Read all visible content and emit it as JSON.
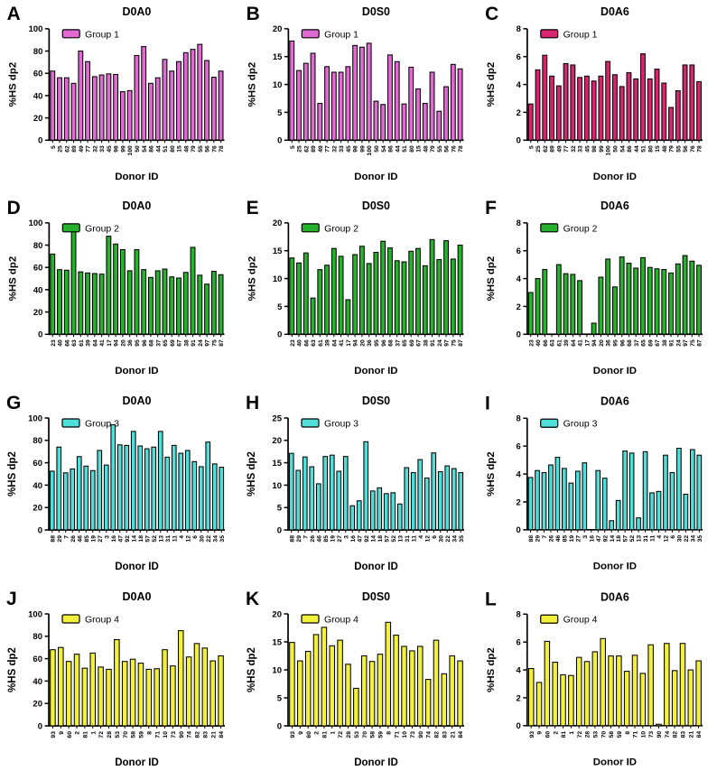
{
  "figure": {
    "background": "#ffffff",
    "axis_color": "#000000",
    "xlabel": "Donor ID",
    "ylabel": "%HS dp2"
  },
  "chart_data": [
    {
      "type": "bar",
      "panel": "A",
      "title": "D0A0",
      "legend": "Group 1",
      "bar_color": "#e06ad2",
      "xlabel": "Donor ID",
      "ylabel": "%HS dp2",
      "ylim": [
        0,
        100
      ],
      "ytick_step": 20,
      "grid": false,
      "legend_position": "top-left",
      "categories": [
        "5",
        "25",
        "62",
        "89",
        "49",
        "77",
        "32",
        "33",
        "45",
        "98",
        "99",
        "100",
        "50",
        "54",
        "86",
        "44",
        "51",
        "80",
        "15",
        "48",
        "79",
        "55",
        "56",
        "76",
        "78"
      ],
      "values": [
        62,
        56,
        56,
        51,
        80,
        70.5,
        57,
        58.5,
        59.5,
        59,
        43.5,
        44.5,
        76,
        84,
        51,
        56,
        72.5,
        62,
        70.5,
        78.5,
        81.5,
        86,
        71.5,
        56.5,
        62
      ]
    },
    {
      "type": "bar",
      "panel": "B",
      "title": "D0S0",
      "legend": "Group 1",
      "bar_color": "#e06ad2",
      "xlabel": "Donor ID",
      "ylabel": "%HS dp2",
      "ylim": [
        0,
        20
      ],
      "ytick_step": 5,
      "grid": false,
      "legend_position": "top-left",
      "categories": [
        "5",
        "25",
        "62",
        "89",
        "49",
        "77",
        "32",
        "33",
        "45",
        "98",
        "99",
        "100",
        "50",
        "54",
        "86",
        "44",
        "51",
        "80",
        "15",
        "48",
        "79",
        "55",
        "56",
        "76",
        "78"
      ],
      "values": [
        17.8,
        12.5,
        13.8,
        15.6,
        6.6,
        13.2,
        12.2,
        12.2,
        13.2,
        17.0,
        16.7,
        17.4,
        7.0,
        6.4,
        15.3,
        14.1,
        6.5,
        13.1,
        9.2,
        6.6,
        12.2,
        5.2,
        9.6,
        13.6,
        12.8
      ]
    },
    {
      "type": "bar",
      "panel": "C",
      "title": "D0A6",
      "legend": "Group 1",
      "bar_color": "#d8256f",
      "xlabel": "Donor ID",
      "ylabel": "%HS dp2",
      "ylim": [
        0,
        8
      ],
      "ytick_step": 2,
      "grid": false,
      "legend_position": "top-left",
      "categories": [
        "5",
        "25",
        "62",
        "89",
        "49",
        "77",
        "32",
        "33",
        "45",
        "98",
        "99",
        "100",
        "50",
        "54",
        "86",
        "44",
        "51",
        "80",
        "15",
        "48",
        "79",
        "55",
        "56",
        "76",
        "78"
      ],
      "values": [
        2.6,
        5.05,
        6.1,
        4.6,
        3.9,
        5.5,
        5.4,
        4.5,
        4.6,
        4.25,
        4.6,
        5.65,
        4.7,
        3.85,
        4.85,
        4.4,
        6.2,
        4.4,
        5.1,
        4.1,
        2.35,
        3.55,
        5.4,
        5.4,
        4.2
      ]
    },
    {
      "type": "bar",
      "panel": "D",
      "title": "D0A0",
      "legend": "Group 2",
      "bar_color": "#27b22d",
      "xlabel": "Donor ID",
      "ylabel": "%HS dp2",
      "ylim": [
        0,
        100
      ],
      "ytick_step": 20,
      "grid": false,
      "legend_position": "top-left",
      "categories": [
        "23",
        "40",
        "66",
        "63",
        "61",
        "39",
        "64",
        "41",
        "17",
        "94",
        "20",
        "36",
        "95",
        "96",
        "68",
        "37",
        "65",
        "69",
        "67",
        "38",
        "91",
        "24",
        "97",
        "75",
        "87"
      ],
      "values": [
        72,
        58,
        57.5,
        93,
        56,
        55,
        54.5,
        54,
        88,
        81,
        76,
        57,
        76,
        58,
        51,
        57,
        58.5,
        51.5,
        50.5,
        55.5,
        78,
        53,
        45,
        56.5,
        53.5
      ]
    },
    {
      "type": "bar",
      "panel": "E",
      "title": "D0S0",
      "legend": "Group 2",
      "bar_color": "#27b22d",
      "xlabel": "Donor ID",
      "ylabel": "%HS dp2",
      "ylim": [
        0,
        20
      ],
      "ytick_step": 5,
      "grid": false,
      "legend_position": "top-left",
      "categories": [
        "23",
        "40",
        "66",
        "63",
        "61",
        "39",
        "64",
        "41",
        "17",
        "94",
        "20",
        "36",
        "95",
        "96",
        "68",
        "37",
        "65",
        "69",
        "67",
        "38",
        "91",
        "24",
        "97",
        "75",
        "87"
      ],
      "values": [
        13.7,
        12.8,
        14.6,
        6.5,
        11.6,
        12.4,
        15.4,
        14.0,
        6.2,
        14.3,
        15.8,
        12.7,
        14.7,
        16.7,
        15.5,
        13.2,
        13.0,
        14.9,
        15.4,
        12.3,
        17.0,
        13.4,
        16.8,
        13.5,
        16.0
      ]
    },
    {
      "type": "bar",
      "panel": "F",
      "title": "D0A6",
      "legend": "Group 2",
      "bar_color": "#27b22d",
      "xlabel": "Donor ID",
      "ylabel": "%HS dp2",
      "ylim": [
        0,
        8
      ],
      "ytick_step": 2,
      "grid": false,
      "legend_position": "top-left",
      "categories": [
        "23",
        "40",
        "66",
        "63",
        "61",
        "39",
        "64",
        "41",
        "17",
        "94",
        "20",
        "36",
        "95",
        "96",
        "68",
        "37",
        "65",
        "69",
        "67",
        "38",
        "91",
        "24",
        "97",
        "75",
        "87"
      ],
      "values": [
        3.0,
        4.0,
        4.65,
        0,
        5.0,
        4.35,
        4.3,
        3.85,
        0,
        0.8,
        4.1,
        5.4,
        3.4,
        5.55,
        5.1,
        4.75,
        5.5,
        4.8,
        4.7,
        4.65,
        4.4,
        5.05,
        5.65,
        5.25,
        4.95
      ]
    },
    {
      "type": "bar",
      "panel": "G",
      "title": "D0A0",
      "legend": "Group 3",
      "bar_color": "#4fdeda",
      "xlabel": "Donor ID",
      "ylabel": "%HS dp2",
      "ylim": [
        0,
        100
      ],
      "ytick_step": 20,
      "grid": false,
      "legend_position": "top-left",
      "categories": [
        "88",
        "29",
        "7",
        "26",
        "46",
        "85",
        "19",
        "27",
        "3",
        "16",
        "47",
        "92",
        "14",
        "18",
        "57",
        "52",
        "13",
        "31",
        "11",
        "4",
        "12",
        "6",
        "30",
        "22",
        "34",
        "35"
      ],
      "values": [
        52.5,
        74,
        51,
        54.5,
        65.5,
        57,
        53,
        71,
        58,
        94,
        76,
        75.5,
        88,
        75,
        72.5,
        74,
        88,
        65,
        75.5,
        68.5,
        71,
        61,
        56.5,
        78.5,
        59,
        56
      ]
    },
    {
      "type": "bar",
      "panel": "H",
      "title": "D0S0",
      "legend": "Group 3",
      "bar_color": "#4fdeda",
      "xlabel": "Donor ID",
      "ylabel": "%HS dp2",
      "ylim": [
        0,
        25
      ],
      "ytick_step": 5,
      "grid": false,
      "legend_position": "top-left",
      "categories": [
        "88",
        "29",
        "7",
        "26",
        "46",
        "85",
        "19",
        "27",
        "3",
        "16",
        "47",
        "92",
        "14",
        "18",
        "57",
        "52",
        "13",
        "31",
        "11",
        "4",
        "12",
        "6",
        "30",
        "22",
        "34",
        "35"
      ],
      "values": [
        17.1,
        13.3,
        16.3,
        14.1,
        10.3,
        16.4,
        16.7,
        13.1,
        16.4,
        5.4,
        6.5,
        19.7,
        8.7,
        9.4,
        8.1,
        8.3,
        5.8,
        13.9,
        12.8,
        15.7,
        11.6,
        17.2,
        13.0,
        14.3,
        13.7,
        12.8
      ]
    },
    {
      "type": "bar",
      "panel": "I",
      "title": "D0A6",
      "legend": "Group 3",
      "bar_color": "#4fdeda",
      "xlabel": "Donor ID",
      "ylabel": "%HS dp2",
      "ylim": [
        0,
        8
      ],
      "ytick_step": 2,
      "grid": false,
      "legend_position": "top-left",
      "categories": [
        "88",
        "29",
        "7",
        "26",
        "46",
        "85",
        "19",
        "27",
        "3",
        "16",
        "47",
        "92",
        "14",
        "18",
        "57",
        "52",
        "13",
        "31",
        "11",
        "4",
        "12",
        "6",
        "30",
        "22",
        "34",
        "35"
      ],
      "values": [
        3.75,
        4.25,
        4.1,
        4.65,
        5.2,
        4.4,
        3.35,
        4.2,
        4.8,
        0,
        4.25,
        3.7,
        0.65,
        2.1,
        5.65,
        5.5,
        0.85,
        5.6,
        2.65,
        2.75,
        5.35,
        4.1,
        5.85,
        2.55,
        5.75,
        5.35
      ]
    },
    {
      "type": "bar",
      "panel": "J",
      "title": "D0A0",
      "legend": "Group 4",
      "bar_color": "#f2f03a",
      "xlabel": "Donor ID",
      "ylabel": "%HS dp2",
      "ylim": [
        0,
        100
      ],
      "ytick_step": 20,
      "grid": false,
      "legend_position": "top-left",
      "categories": [
        "93",
        "9",
        "60",
        "2",
        "81",
        "1",
        "72",
        "28",
        "53",
        "70",
        "58",
        "59",
        "8",
        "71",
        "10",
        "73",
        "90",
        "74",
        "82",
        "83",
        "21",
        "84"
      ],
      "values": [
        68,
        70,
        57.5,
        64,
        51.5,
        65,
        52.5,
        50.5,
        77,
        57.5,
        59.5,
        56,
        50.5,
        51,
        68,
        53.5,
        85,
        61.5,
        73.5,
        69.5,
        58,
        62.5
      ]
    },
    {
      "type": "bar",
      "panel": "K",
      "title": "D0S0",
      "legend": "Group 4",
      "bar_color": "#f2f03a",
      "xlabel": "Donor ID",
      "ylabel": "%HS dp2",
      "ylim": [
        0,
        20
      ],
      "ytick_step": 5,
      "grid": false,
      "legend_position": "top-left",
      "categories": [
        "93",
        "9",
        "60",
        "2",
        "81",
        "1",
        "72",
        "28",
        "53",
        "70",
        "58",
        "59",
        "8",
        "71",
        "10",
        "73",
        "90",
        "74",
        "82",
        "83",
        "21",
        "84"
      ],
      "values": [
        14.9,
        11.6,
        13.3,
        16.3,
        17.6,
        14.3,
        15.3,
        11.0,
        6.7,
        12.5,
        11.5,
        12.8,
        18.5,
        16.2,
        14.2,
        13.4,
        14.2,
        8.3,
        15.3,
        9.3,
        12.5,
        11.6
      ]
    },
    {
      "type": "bar",
      "panel": "L",
      "title": "D0A6",
      "legend": "Group 4",
      "bar_color": "#f2f03a",
      "xlabel": "Donor ID",
      "ylabel": "%HS dp2",
      "ylim": [
        0,
        8
      ],
      "ytick_step": 2,
      "grid": false,
      "legend_position": "top-left",
      "categories": [
        "93",
        "9",
        "60",
        "2",
        "81",
        "1",
        "72",
        "28",
        "53",
        "70",
        "58",
        "59",
        "8",
        "71",
        "10",
        "73",
        "90",
        "74",
        "82",
        "83",
        "21",
        "84"
      ],
      "values": [
        4.1,
        3.1,
        6.05,
        4.55,
        3.65,
        3.6,
        4.9,
        4.6,
        5.3,
        6.25,
        5.0,
        5.0,
        3.9,
        5.05,
        3.75,
        5.8,
        0.1,
        5.9,
        3.95,
        5.9,
        4.0,
        4.65
      ]
    }
  ]
}
